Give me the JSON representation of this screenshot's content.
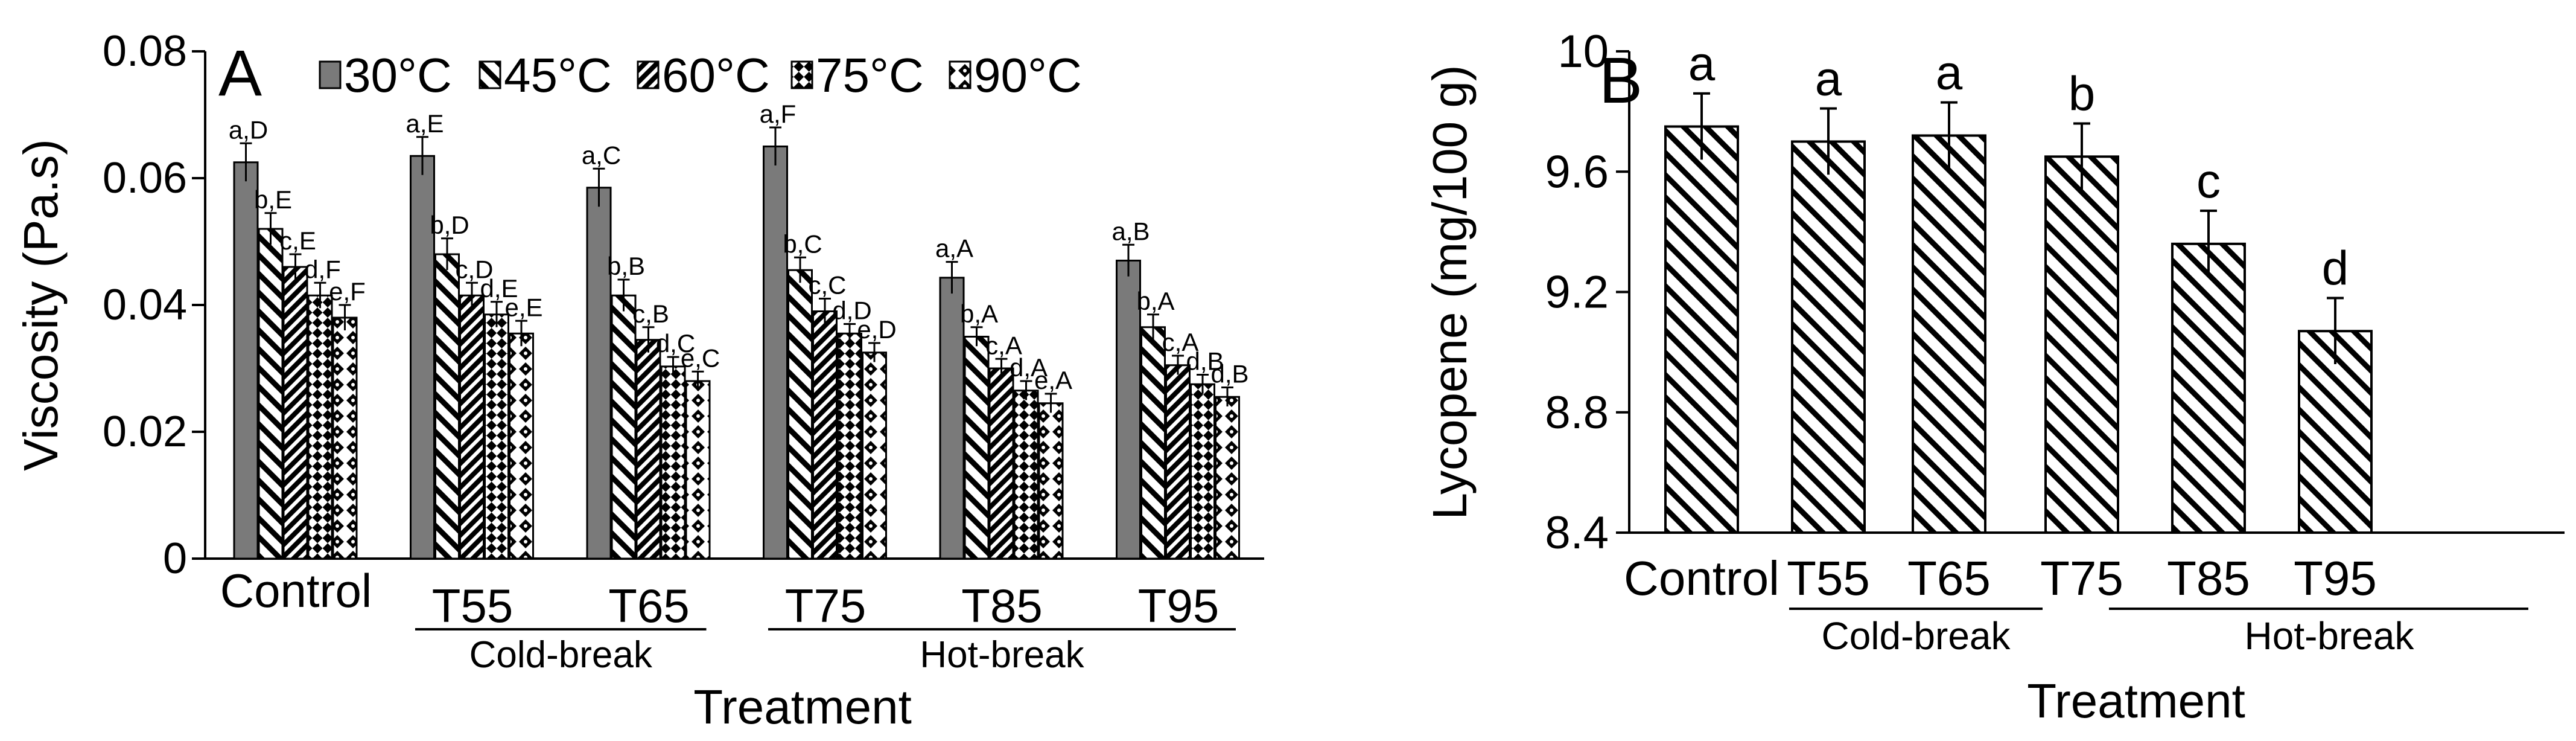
{
  "chart_data": [
    {
      "type": "bar",
      "panel_label": "A",
      "xlabel": "Treatment",
      "ylabel": "Viscosity (Pa.s)",
      "ylim": [
        0,
        0.08
      ],
      "yticks": [
        "0",
        "0.02",
        "0.04",
        "0.06",
        "0.08"
      ],
      "ytick_values": [
        0,
        0.02,
        0.04,
        0.06,
        0.08
      ],
      "categories": [
        "Control",
        "T55",
        "T65",
        "T75",
        "T85",
        "T95"
      ],
      "groups": [
        {
          "label": "Cold-break",
          "categories": [
            "T55",
            "T65"
          ]
        },
        {
          "label": "Hot-break",
          "categories": [
            "T75",
            "T85",
            "T95"
          ]
        }
      ],
      "legend_position": "top",
      "series": [
        {
          "name": "30°C",
          "pattern": "solid-gray",
          "values": [
            0.0625,
            0.0635,
            0.0585,
            0.065,
            0.0443,
            0.047
          ],
          "errors": [
            0.003,
            0.003,
            0.003,
            0.003,
            0.0025,
            0.0025
          ],
          "labels": [
            "a,D",
            "a,E",
            "a,C",
            "a,F",
            "a,A",
            "a,B"
          ]
        },
        {
          "name": "45°C",
          "pattern": "back-diagonal",
          "values": [
            0.052,
            0.048,
            0.0415,
            0.0455,
            0.035,
            0.0365
          ],
          "errors": [
            0.0025,
            0.0025,
            0.0025,
            0.002,
            0.0015,
            0.002
          ],
          "labels": [
            "b,E",
            "b,D",
            "b,B",
            "b,C",
            "b,A",
            "b,A"
          ]
        },
        {
          "name": "60°C",
          "pattern": "dense-diagonal",
          "values": [
            0.046,
            0.0415,
            0.0345,
            0.039,
            0.03,
            0.0305
          ],
          "errors": [
            0.002,
            0.002,
            0.002,
            0.002,
            0.0015,
            0.0015
          ],
          "labels": [
            "c,E",
            "c,D",
            "c,B",
            "c,C",
            "c,A",
            "c,A"
          ]
        },
        {
          "name": "75°C",
          "pattern": "checker",
          "values": [
            0.0415,
            0.0385,
            0.0303,
            0.0355,
            0.0265,
            0.0275
          ],
          "errors": [
            0.002,
            0.002,
            0.0015,
            0.0015,
            0.0015,
            0.0015
          ],
          "labels": [
            "d,F",
            "d,E",
            "d,C",
            "d,D",
            "d,A",
            "d,B"
          ]
        },
        {
          "name": "90°C",
          "pattern": "dotted-diamond",
          "values": [
            0.038,
            0.0355,
            0.028,
            0.0325,
            0.0245,
            0.0255
          ],
          "errors": [
            0.002,
            0.002,
            0.0015,
            0.0015,
            0.0015,
            0.0015
          ],
          "labels": [
            "e,F",
            "e,E",
            "e,C",
            "e,D",
            "e,A",
            "d,B"
          ]
        }
      ]
    },
    {
      "type": "bar",
      "panel_label": "B",
      "xlabel": "Treatment",
      "ylabel": "Lycopene (mg/100 g)",
      "ylim": [
        8.4,
        10
      ],
      "yticks": [
        "8.4",
        "8.8",
        "9.2",
        "9.6",
        "10"
      ],
      "ytick_values": [
        8.4,
        8.8,
        9.2,
        9.6,
        10
      ],
      "categories": [
        "Control",
        "T55",
        "T65",
        "T75",
        "T85",
        "T95"
      ],
      "groups": [
        {
          "label": "Cold-break",
          "categories": [
            "T55",
            "T65"
          ]
        },
        {
          "label": "Hot-break",
          "categories": [
            "T75",
            "T85",
            "T95"
          ]
        }
      ],
      "values": [
        9.75,
        9.7,
        9.72,
        9.65,
        9.36,
        9.07
      ],
      "errors": [
        0.11,
        0.11,
        0.11,
        0.11,
        0.11,
        0.11
      ],
      "labels": [
        "a",
        "a",
        "a",
        "b",
        "c",
        "d"
      ]
    }
  ]
}
